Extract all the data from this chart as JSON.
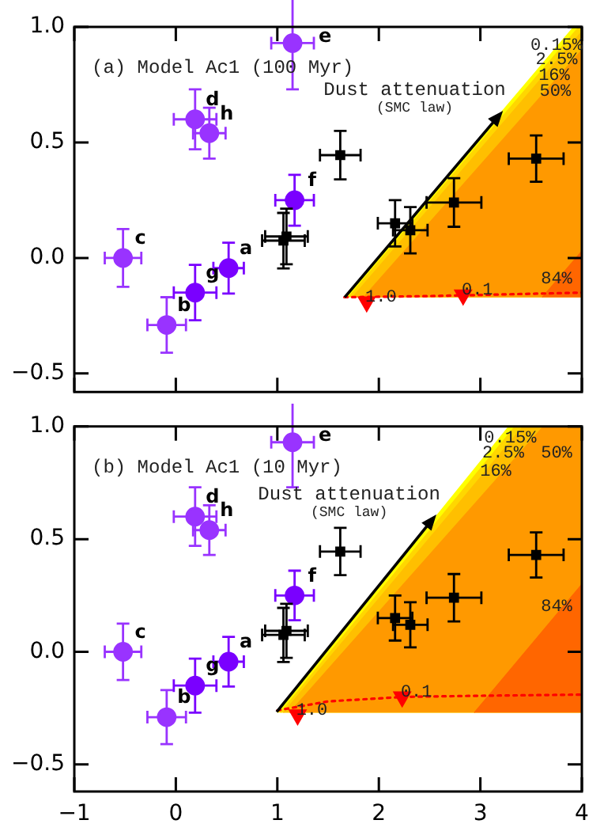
{
  "chart_data": [
    {
      "type": "scatter",
      "title": "(a) Model Ac1 (100 Myr)",
      "xlim": [
        -1,
        4
      ],
      "ylim": [
        -0.58,
        1.0
      ],
      "xticks": [
        -1,
        0,
        1,
        2,
        3,
        4
      ],
      "yticks": [
        {
          "value": -0.5,
          "label": "−0.5"
        },
        {
          "value": 0,
          "label": "0.0"
        },
        0.5,
        {
          "value": 1,
          "label": "1.0"
        }
      ],
      "tick_labels": "y",
      "legend": false,
      "grid": false,
      "series": [
        {
          "type": "area",
          "color": "#ffff00",
          "x": [
            1.66,
            3.92,
            4,
            4
          ],
          "values": [
            -0.17,
            1.0,
            1.0,
            -0.17
          ]
        },
        {
          "type": "area",
          "color": "#ffd700",
          "x": [
            1.7,
            3.97,
            4,
            4
          ],
          "values": [
            -0.17,
            1.0,
            1.0,
            -0.17
          ]
        },
        {
          "type": "area",
          "color": "#ffbf00",
          "x": [
            1.74,
            4,
            4
          ],
          "values": [
            -0.17,
            0.98,
            -0.17
          ]
        },
        {
          "type": "area",
          "color": "#ff9900",
          "x": [
            1.85,
            4,
            4
          ],
          "values": [
            -0.17,
            0.9,
            -0.17
          ]
        },
        {
          "type": "area",
          "color": "#ff6600",
          "x": [
            3.61,
            4,
            4
          ],
          "values": [
            -0.17,
            0.03,
            -0.17
          ]
        },
        {
          "type": "line",
          "color": "#ff0000",
          "line_style": "dotted",
          "marker": "none",
          "x": [
            1.66,
            2.5,
            3.2,
            4
          ],
          "values": [
            -0.17,
            -0.165,
            -0.158,
            -0.15
          ]
        },
        {
          "type": "scatter",
          "color": "#ff0000",
          "marker": "triangle",
          "x": [
            1.88,
            2.83
          ],
          "values": [
            -0.19,
            -0.16
          ]
        },
        {
          "type": "scatter",
          "color": "#9933ff",
          "marker": "circle",
          "x": [
            1.15,
            0.19,
            0.33,
            -0.52,
            -0.09
          ],
          "values": [
            0.93,
            0.6,
            0.54,
            0.0,
            -0.29
          ],
          "xerrors": [
            0.21,
            0.21,
            0.16,
            0.18,
            0.19
          ],
          "errors": [
            0.2,
            0.13,
            0.11,
            0.125,
            0.12
          ],
          "value_labels": [
            "e",
            "d",
            "h",
            "c",
            "b"
          ]
        },
        {
          "type": "scatter",
          "color": "#7a00ff",
          "marker": "circle",
          "x": [
            0.19,
            0.52,
            1.17
          ],
          "values": [
            -0.15,
            -0.044,
            0.25
          ],
          "xerrors": [
            0.21,
            0.15,
            0.19
          ],
          "errors": [
            0.12,
            0.11,
            0.11
          ],
          "value_labels": [
            "g",
            "a",
            "f"
          ]
        },
        {
          "type": "scatter",
          "color": "#000000",
          "marker": "square",
          "x": [
            1.06,
            1.09,
            1.62,
            2.16,
            2.31,
            2.74,
            3.55
          ],
          "values": [
            0.075,
            0.093,
            0.445,
            0.15,
            0.12,
            0.24,
            0.43
          ],
          "xerrors": [
            0.21,
            0.21,
            0.2,
            0.17,
            0.17,
            0.27,
            0.27
          ],
          "errors": [
            0.12,
            0.12,
            0.105,
            0.1,
            0.1,
            0.105,
            0.1
          ]
        }
      ],
      "annotations": [
        "Dust attenuation",
        "(SMC law)",
        {
          "text": "0.15%",
          "x": 3.727,
          "y": 0.9
        },
        {
          "text": "2.5%",
          "x": 3.66,
          "y": 0.84
        },
        {
          "text": "16%",
          "x": 3.587,
          "y": 0.77
        },
        {
          "text": "50%",
          "x": 3.598,
          "y": 0.7
        },
        {
          "text": "84%",
          "x": 3.727,
          "y": -0.11
        },
        {
          "text": "1.0",
          "x": 1.88,
          "y": -0.19
        },
        {
          "text": "0.1",
          "x": 2.83,
          "y": -0.16
        }
      ]
    },
    {
      "type": "scatter",
      "title": "(b) Model Ac1 (10 Myr)",
      "xlim": [
        -1,
        4
      ],
      "ylim": [
        -0.62,
        1.0
      ],
      "xticks": [
        {
          "value": -1,
          "label": "−1"
        },
        0,
        1,
        2,
        3,
        4
      ],
      "yticks": [
        {
          "value": -0.5,
          "label": "−0.5"
        },
        {
          "value": 0,
          "label": "0.0"
        },
        0.5,
        {
          "value": 1,
          "label": "1.0"
        }
      ],
      "legend": false,
      "grid": false,
      "series": [
        {
          "type": "area",
          "color": "#ffff00",
          "x": [
            1.0,
            3.28,
            4,
            4
          ],
          "values": [
            -0.27,
            1.0,
            1.0,
            -0.27
          ]
        },
        {
          "type": "area",
          "color": "#ffd700",
          "x": [
            1.03,
            3.34,
            4,
            4
          ],
          "values": [
            -0.27,
            1.0,
            1.0,
            -0.27
          ]
        },
        {
          "type": "area",
          "color": "#ffbf00",
          "x": [
            1.06,
            3.42,
            4,
            4
          ],
          "values": [
            -0.27,
            1.0,
            1.0,
            -0.27
          ]
        },
        {
          "type": "area",
          "color": "#ff9900",
          "x": [
            1.12,
            3.62,
            4,
            4
          ],
          "values": [
            -0.27,
            1.0,
            1.0,
            -0.27
          ]
        },
        {
          "type": "area",
          "color": "#ff6600",
          "x": [
            2.94,
            4,
            4
          ],
          "values": [
            -0.27,
            0.3,
            -0.27
          ]
        },
        {
          "type": "line",
          "color": "#ff0000",
          "line_style": "dotted",
          "marker": "none",
          "x": [
            1.0,
            1.5,
            2.25,
            3,
            4
          ],
          "values": [
            -0.26,
            -0.22,
            -0.2,
            -0.195,
            -0.19
          ]
        },
        {
          "type": "scatter",
          "color": "#ff0000",
          "marker": "triangle",
          "x": [
            1.2,
            2.23
          ],
          "values": [
            -0.28,
            -0.2
          ]
        },
        {
          "type": "scatter",
          "color": "#9933ff",
          "marker": "circle",
          "x": [
            1.15,
            0.19,
            0.33,
            -0.52,
            -0.09
          ],
          "values": [
            0.93,
            0.6,
            0.54,
            0.0,
            -0.29
          ],
          "xerrors": [
            0.21,
            0.21,
            0.16,
            0.18,
            0.19
          ],
          "errors": [
            0.2,
            0.13,
            0.11,
            0.125,
            0.12
          ],
          "value_labels": [
            "e",
            "d",
            "h",
            "c",
            "b"
          ]
        },
        {
          "type": "scatter",
          "color": "#7a00ff",
          "marker": "circle",
          "x": [
            0.19,
            0.52,
            1.17
          ],
          "values": [
            -0.15,
            -0.044,
            0.25
          ],
          "xerrors": [
            0.21,
            0.15,
            0.19
          ],
          "errors": [
            0.12,
            0.11,
            0.11
          ],
          "value_labels": [
            "g",
            "a",
            "f"
          ]
        },
        {
          "type": "scatter",
          "color": "#000000",
          "marker": "square",
          "x": [
            1.06,
            1.09,
            1.62,
            2.16,
            2.31,
            2.74,
            3.55
          ],
          "values": [
            0.075,
            0.093,
            0.445,
            0.15,
            0.12,
            0.24,
            0.43
          ],
          "xerrors": [
            0.21,
            0.21,
            0.2,
            0.17,
            0.17,
            0.27,
            0.27
          ],
          "errors": [
            0.12,
            0.12,
            0.105,
            0.1,
            0.1,
            0.105,
            0.1
          ]
        }
      ],
      "annotations": [
        "Dust attenuation",
        "(SMC law)",
        {
          "text": "0.15%",
          "x": 3.154,
          "y": 0.93
        },
        {
          "text": "2.5%",
          "x": 3.085,
          "y": 0.86
        },
        {
          "text": "16%",
          "x": 3.011,
          "y": 0.78
        },
        {
          "text": "50%",
          "x": 4,
          "y": 0.86
        },
        {
          "text": "84%",
          "x": 3.777,
          "y": 0.18
        },
        {
          "text": "1.0",
          "x": 1.2,
          "y": -0.28
        },
        {
          "text": "0.1",
          "x": 2.23,
          "y": -0.2
        }
      ]
    }
  ]
}
